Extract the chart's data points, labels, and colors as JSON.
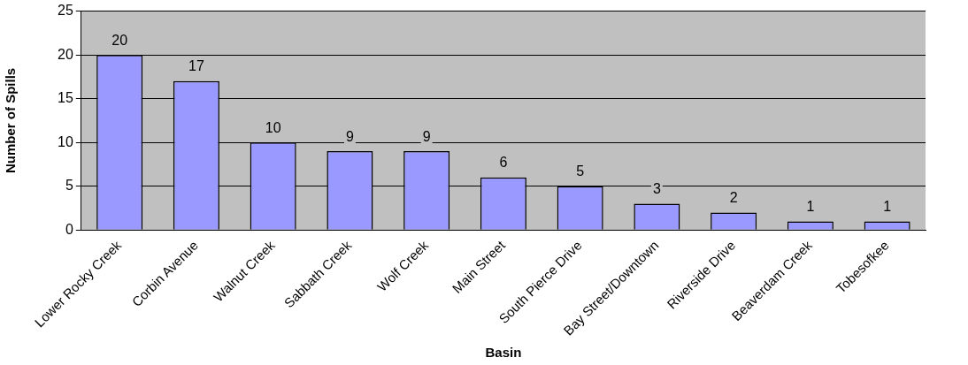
{
  "chart_data": {
    "type": "bar",
    "xlabel": "Basin",
    "ylabel": "Number of Spills",
    "categories": [
      "Lower Rocky Creek",
      "Corbin Avenue",
      "Walnut Creek",
      "Sabbath Creek",
      "Wolf Creek",
      "Main Street",
      "South Pierce Drive",
      "Bay Street/Downtown",
      "Riverside Drive",
      "Beaverdam Creek",
      "Tobesofkee"
    ],
    "values": [
      20,
      17,
      10,
      9,
      9,
      6,
      5,
      3,
      2,
      1,
      1
    ],
    "color": "#9999ff",
    "ylim": [
      0,
      25
    ],
    "yticks": [
      0,
      5,
      10,
      15,
      20,
      25
    ],
    "grid": "y",
    "data_labels": true,
    "legend": false
  }
}
